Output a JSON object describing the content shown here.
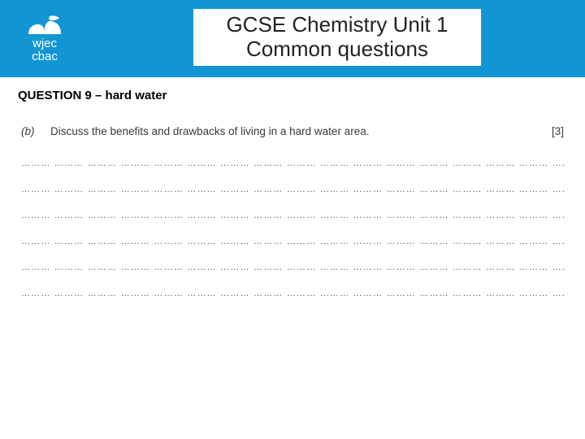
{
  "header": {
    "bg_color": "#1295d3",
    "logo": {
      "line1": "wjec",
      "line2": "cbac",
      "text_color": "#ffffff",
      "icon_color": "#ffffff"
    },
    "title": {
      "line1": "GCSE Chemistry Unit 1",
      "line2": "Common questions",
      "text_color": "#222222",
      "bg_color": "#ffffff",
      "fontsize": 26
    }
  },
  "question": {
    "heading": "QUESTION 9 – hard water",
    "part_label": "(b)",
    "prompt": "Discuss the benefits and drawbacks of living in a hard water area.",
    "marks": "[3]",
    "answer_line_count": 6,
    "dot_segment": "………",
    "segments_per_line": 16
  },
  "colors": {
    "page_bg": "#ffffff",
    "accent": "#1295d3",
    "text_dark": "#000000",
    "text_body": "#3a3a3a",
    "dots": "#555555"
  }
}
